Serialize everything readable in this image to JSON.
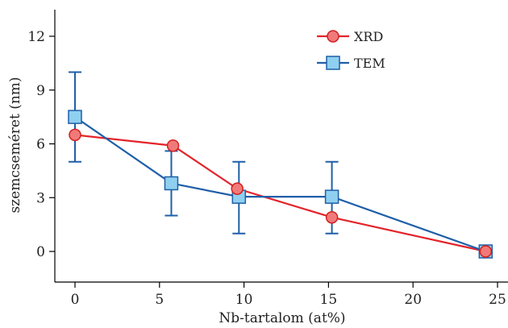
{
  "chart_data": {
    "type": "line",
    "title": "",
    "xlabel": "Nb-tartalom (at%)",
    "ylabel": "szemcseméret (nm)",
    "xlim": [
      -1.2,
      25.5
    ],
    "ylim": [
      -1.7,
      13.5
    ],
    "xticks": [
      0,
      5,
      10,
      15,
      20,
      25
    ],
    "yticks": [
      0,
      3,
      6,
      9,
      12
    ],
    "xtick_labels": [
      "0",
      "5",
      "10",
      "15",
      "20",
      "25"
    ],
    "ytick_labels": [
      "0",
      "3",
      "6",
      "9",
      "12"
    ],
    "grid": false,
    "legend_position": "top-right",
    "series": [
      {
        "name": "XRD",
        "marker": "circle",
        "line_color": "#e3242b",
        "marker_fill": "#f07a7a",
        "marker_edge": "#d42020",
        "points": [
          {
            "x": 0,
            "y": 6.5
          },
          {
            "x": 5.8,
            "y": 5.9
          },
          {
            "x": 9.6,
            "y": 3.5
          },
          {
            "x": 15.2,
            "y": 1.9
          },
          {
            "x": 24.3,
            "y": 0.0
          }
        ]
      },
      {
        "name": "TEM",
        "marker": "square",
        "line_color": "#1f5fa8",
        "marker_fill": "#8fd0f0",
        "marker_edge": "#1f5fa8",
        "points": [
          {
            "x": 0,
            "y": 7.5,
            "err_low": 5.0,
            "err_high": 10.0
          },
          {
            "x": 5.7,
            "y": 3.8,
            "err_low": 2.0,
            "err_high": 5.6
          },
          {
            "x": 9.7,
            "y": 3.05,
            "err_low": 1.0,
            "err_high": 5.0
          },
          {
            "x": 15.2,
            "y": 3.05,
            "err_low": 1.0,
            "err_high": 5.0
          },
          {
            "x": 24.3,
            "y": 0.0
          }
        ]
      }
    ]
  }
}
